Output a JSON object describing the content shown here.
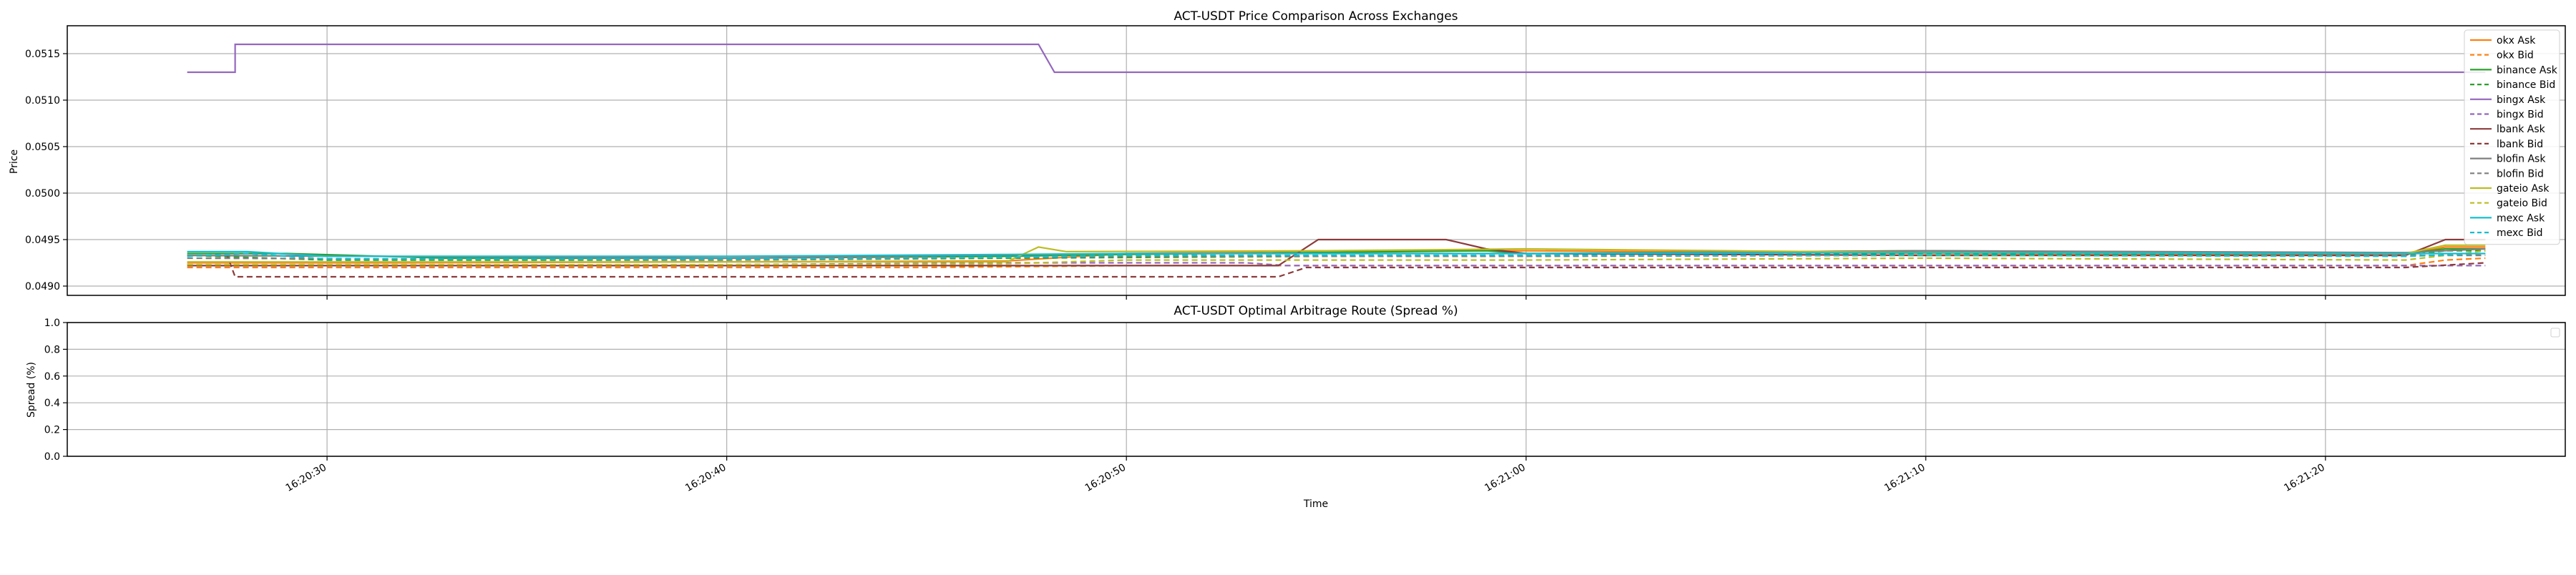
{
  "charts": [
    {
      "title": "ACT-USDT Price Comparison Across Exchanges",
      "ylabel": "Price",
      "yticks": [
        "0.0490",
        "0.0495",
        "0.0500",
        "0.0505",
        "0.0510",
        "0.0515"
      ]
    },
    {
      "title": "ACT-USDT Optimal Arbitrage Route (Spread %)",
      "ylabel": "Spread (%)",
      "xlabel": "Time",
      "yticks": [
        "0.0",
        "0.2",
        "0.4",
        "0.6",
        "0.8",
        "1.0"
      ],
      "xticks": [
        "16:20:30",
        "16:20:40",
        "16:20:50",
        "16:21:00",
        "16:21:10",
        "16:21:20"
      ]
    }
  ],
  "chart_data": [
    {
      "type": "line",
      "title": "ACT-USDT Price Comparison Across Exchanges",
      "xlabel": "",
      "ylabel": "Price",
      "xlim": [
        "16:20:23.5",
        "16:21:26.0"
      ],
      "ylim": [
        0.0489,
        0.0518
      ],
      "x_ticks": [
        "16:20:30",
        "16:20:40",
        "16:20:50",
        "16:21:00",
        "16:21:10",
        "16:21:20"
      ],
      "y_ticks": [
        0.049,
        0.0495,
        0.05,
        0.0505,
        0.051,
        0.0515
      ],
      "grid": true,
      "legend": "top-right",
      "series": [
        {
          "name": "okx Ask",
          "color": "#ff7f0e",
          "dash": false,
          "points": [
            [
              "16:20:26.5",
              0.04925
            ],
            [
              "16:20:32",
              0.04925
            ],
            [
              "16:20:47",
              0.04927
            ],
            [
              "16:20:50",
              0.04935
            ],
            [
              "16:20:55",
              0.04938
            ],
            [
              "16:21:00",
              0.04938
            ],
            [
              "16:21:10",
              0.04935
            ],
            [
              "16:21:18",
              0.04934
            ],
            [
              "16:21:22",
              0.04934
            ],
            [
              "16:21:23",
              0.04942
            ],
            [
              "16:21:24",
              0.04942
            ]
          ]
        },
        {
          "name": "okx Bid",
          "color": "#ff7f0e",
          "dash": true,
          "points": [
            [
              "16:20:26.5",
              0.0492
            ],
            [
              "16:20:45",
              0.0492
            ],
            [
              "16:20:50",
              0.04922
            ],
            [
              "16:21:00",
              0.04922
            ],
            [
              "16:21:10",
              0.04922
            ],
            [
              "16:21:22",
              0.04922
            ],
            [
              "16:21:23",
              0.04928
            ],
            [
              "16:21:24",
              0.0493
            ]
          ]
        },
        {
          "name": "binance Ask",
          "color": "#2ca02c",
          "dash": false,
          "points": [
            [
              "16:20:26.5",
              0.04935
            ],
            [
              "16:20:29",
              0.04935
            ],
            [
              "16:20:33",
              0.0493
            ],
            [
              "16:20:40",
              0.0493
            ],
            [
              "16:20:47",
              0.04932
            ],
            [
              "16:20:50",
              0.04934
            ],
            [
              "16:20:59",
              0.04938
            ],
            [
              "16:21:00",
              0.04935
            ],
            [
              "16:21:10",
              0.04938
            ],
            [
              "16:21:18",
              0.04936
            ],
            [
              "16:21:22",
              0.04935
            ],
            [
              "16:21:23",
              0.0494
            ],
            [
              "16:21:24",
              0.0494
            ]
          ]
        },
        {
          "name": "binance Bid",
          "color": "#2ca02c",
          "dash": true,
          "points": [
            [
              "16:20:26.5",
              0.04933
            ],
            [
              "16:20:30",
              0.04928
            ],
            [
              "16:20:40",
              0.04928
            ],
            [
              "16:20:47",
              0.0493
            ],
            [
              "16:20:55",
              0.04932
            ],
            [
              "16:21:00",
              0.04932
            ],
            [
              "16:21:10",
              0.04935
            ],
            [
              "16:21:22",
              0.04933
            ],
            [
              "16:21:23",
              0.04938
            ],
            [
              "16:21:24",
              0.04938
            ]
          ]
        },
        {
          "name": "bingx Ask",
          "color": "#9467bd",
          "dash": false,
          "points": [
            [
              "16:20:26.5",
              0.0513
            ],
            [
              "16:20:27.7",
              0.0513
            ],
            [
              "16:20:27.7",
              0.0516
            ],
            [
              "16:20:47.8",
              0.0516
            ],
            [
              "16:20:48.2",
              0.0513
            ],
            [
              "16:21:24",
              0.0513
            ]
          ]
        },
        {
          "name": "bingx Bid",
          "color": "#9467bd",
          "dash": true,
          "points": [
            [
              "16:20:26.5",
              0.04923
            ],
            [
              "16:20:40",
              0.04923
            ],
            [
              "16:20:47",
              0.04925
            ],
            [
              "16:20:53",
              0.04925
            ],
            [
              "16:20:54",
              0.04922
            ],
            [
              "16:21:00",
              0.04922
            ],
            [
              "16:21:22",
              0.04922
            ],
            [
              "16:21:24",
              0.04922
            ]
          ]
        },
        {
          "name": "lbank Ask",
          "color": "#8c3b3b",
          "dash": false,
          "points": [
            [
              "16:20:26.5",
              0.04922
            ],
            [
              "16:20:53.8",
              0.04922
            ],
            [
              "16:20:54.8",
              0.0495
            ],
            [
              "16:20:58",
              0.0495
            ],
            [
              "16:20:59",
              0.0494
            ],
            [
              "16:21:00",
              0.04935
            ],
            [
              "16:21:10",
              0.04933
            ],
            [
              "16:21:22",
              0.04933
            ],
            [
              "16:21:23",
              0.0495
            ],
            [
              "16:21:24",
              0.0495
            ]
          ]
        },
        {
          "name": "lbank Bid",
          "color": "#8c3b3b",
          "dash": true,
          "points": [
            [
              "16:20:26.5",
              0.04933
            ],
            [
              "16:20:27.5",
              0.04933
            ],
            [
              "16:20:27.7",
              0.0491
            ],
            [
              "16:20:53.8",
              0.0491
            ],
            [
              "16:20:54.5",
              0.0492
            ],
            [
              "16:21:00",
              0.0492
            ],
            [
              "16:21:22",
              0.0492
            ],
            [
              "16:21:24",
              0.04925
            ]
          ]
        },
        {
          "name": "blofin Ask",
          "color": "#7f7f7f",
          "dash": false,
          "points": [
            [
              "16:20:26.5",
              0.04933
            ],
            [
              "16:20:40",
              0.0493
            ],
            [
              "16:20:50",
              0.04935
            ],
            [
              "16:21:00",
              0.04935
            ],
            [
              "16:21:10",
              0.04938
            ],
            [
              "16:21:22",
              0.04936
            ],
            [
              "16:21:24",
              0.0494
            ]
          ]
        },
        {
          "name": "blofin Bid",
          "color": "#7f7f7f",
          "dash": true,
          "points": [
            [
              "16:20:26.5",
              0.0493
            ],
            [
              "16:20:40",
              0.04928
            ],
            [
              "16:20:50",
              0.04932
            ],
            [
              "16:21:00",
              0.04932
            ],
            [
              "16:21:10",
              0.04933
            ],
            [
              "16:21:22",
              0.04933
            ],
            [
              "16:21:24",
              0.04933
            ]
          ]
        },
        {
          "name": "gateio Ask",
          "color": "#bcbd22",
          "dash": false,
          "points": [
            [
              "16:20:26.5",
              0.04926
            ],
            [
              "16:20:40",
              0.04926
            ],
            [
              "16:20:47",
              0.04926
            ],
            [
              "16:20:47.8",
              0.04942
            ],
            [
              "16:20:48.5",
              0.04937
            ],
            [
              "16:20:55",
              0.04938
            ],
            [
              "16:21:00",
              0.0494
            ],
            [
              "16:21:10",
              0.04936
            ],
            [
              "16:21:22",
              0.04935
            ],
            [
              "16:21:23",
              0.04944
            ],
            [
              "16:21:24",
              0.04944
            ]
          ]
        },
        {
          "name": "gateio Bid",
          "color": "#bcbd22",
          "dash": true,
          "points": [
            [
              "16:20:26.5",
              0.04923
            ],
            [
              "16:20:40",
              0.04923
            ],
            [
              "16:20:47",
              0.04924
            ],
            [
              "16:20:50",
              0.04928
            ],
            [
              "16:21:00",
              0.04928
            ],
            [
              "16:21:10",
              0.0493
            ],
            [
              "16:21:22",
              0.04928
            ],
            [
              "16:21:24",
              0.04938
            ]
          ]
        },
        {
          "name": "mexc Ask",
          "color": "#17becf",
          "dash": false,
          "points": [
            [
              "16:20:26.5",
              0.04937
            ],
            [
              "16:20:28",
              0.04937
            ],
            [
              "16:20:30",
              0.04932
            ],
            [
              "16:20:40",
              0.04932
            ],
            [
              "16:20:47",
              0.04934
            ],
            [
              "16:20:50",
              0.04935
            ],
            [
              "16:21:00",
              0.04935
            ],
            [
              "16:21:10",
              0.04936
            ],
            [
              "16:21:22",
              0.04935
            ],
            [
              "16:21:24",
              0.04935
            ]
          ]
        },
        {
          "name": "mexc Bid",
          "color": "#17becf",
          "dash": true,
          "points": [
            [
              "16:20:26.5",
              0.04932
            ],
            [
              "16:20:28",
              0.04935
            ],
            [
              "16:20:30",
              0.04929
            ],
            [
              "16:20:40",
              0.04929
            ],
            [
              "16:20:47",
              0.04931
            ],
            [
              "16:20:50",
              0.04933
            ],
            [
              "16:21:00",
              0.04933
            ],
            [
              "16:21:10",
              0.04933
            ],
            [
              "16:21:22",
              0.04932
            ],
            [
              "16:21:24",
              0.04935
            ]
          ]
        }
      ]
    },
    {
      "type": "line",
      "title": "ACT-USDT Optimal Arbitrage Route (Spread %)",
      "xlabel": "Time",
      "ylabel": "Spread (%)",
      "xlim": [
        "16:20:23.5",
        "16:21:26.0"
      ],
      "ylim": [
        0,
        1
      ],
      "x_ticks": [
        "16:20:30",
        "16:20:40",
        "16:20:50",
        "16:21:00",
        "16:21:10",
        "16:21:20"
      ],
      "y_ticks": [
        0,
        0.2,
        0.4,
        0.6,
        0.8,
        1.0
      ],
      "grid": true,
      "legend": "top-right",
      "series": []
    }
  ]
}
